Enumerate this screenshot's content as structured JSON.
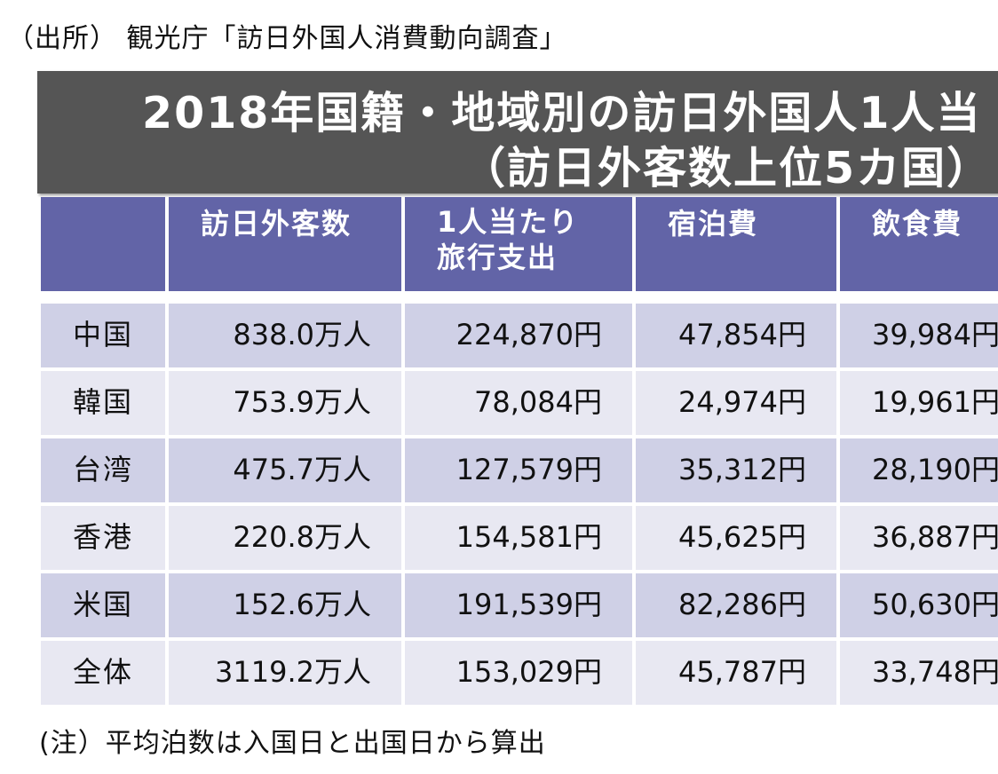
{
  "source_note": "（出所） 観光庁「訪日外国人消費動向調査」",
  "title": {
    "line1": "2018年国籍・地域別の訪日外国人1人当",
    "line2": "（訪日外客数上位5カ国）"
  },
  "table": {
    "headers": [
      "",
      "訪日外客数",
      "1人当たり\n旅行支出",
      "宿泊費",
      "飲食費"
    ],
    "rows": [
      [
        "中国",
        "838.0万人",
        "224,870円",
        "47,854円",
        "39,984円"
      ],
      [
        "韓国",
        "753.9万人",
        "78,084円",
        "24,974円",
        "19,961円"
      ],
      [
        "台湾",
        "475.7万人",
        "127,579円",
        "35,312円",
        "28,190円"
      ],
      [
        "香港",
        "220.8万人",
        "154,581円",
        "45,625円",
        "36,887円"
      ],
      [
        "米国",
        "152.6万人",
        "191,539円",
        "82,286円",
        "50,630円"
      ],
      [
        "全体",
        "3119.2万人",
        "153,029円",
        "45,787円",
        "33,748円"
      ]
    ]
  },
  "footnote": "(注）平均泊数は入国日と出国日から算出",
  "colors": {
    "title_band": "#555555",
    "header_bg": "#6264a7",
    "row_odd": "#cfd0e6",
    "row_even": "#e8e8f2"
  }
}
